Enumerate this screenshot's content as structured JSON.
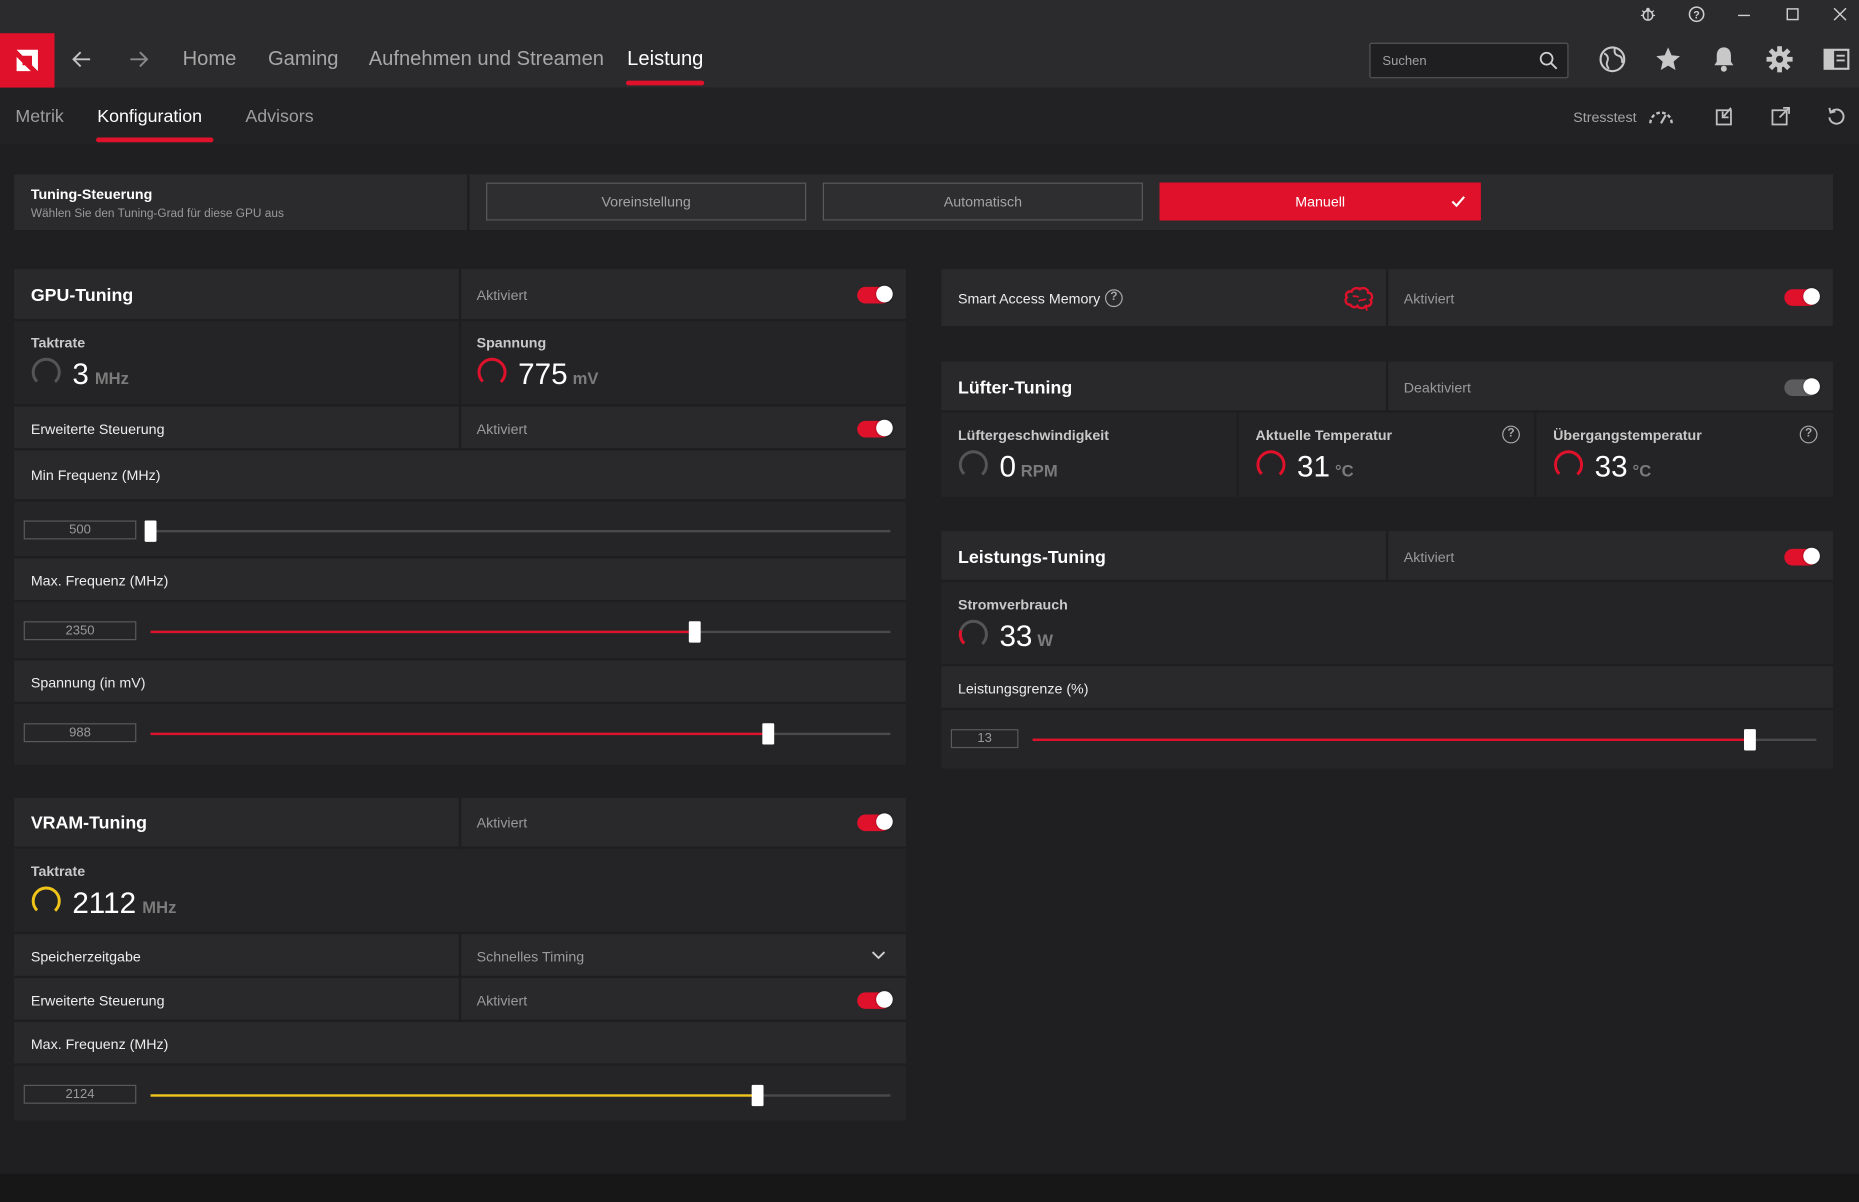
{
  "topnav": {
    "links": [
      "Home",
      "Gaming",
      "Aufnehmen und Streamen",
      "Leistung"
    ],
    "search_placeholder": "Suchen"
  },
  "subnav": {
    "tabs": [
      "Metrik",
      "Konfiguration",
      "Advisors"
    ],
    "stresstest_label": "Stresstest"
  },
  "tuning_control": {
    "title": "Tuning-Steuerung",
    "subtitle": "Wählen Sie den Tuning-Grad für diese GPU aus",
    "options": [
      "Voreinstellung",
      "Automatisch",
      "Manuell"
    ],
    "selected": "Manuell"
  },
  "gpu_tuning": {
    "title": "GPU-Tuning",
    "status": "Aktiviert",
    "clock_label": "Taktrate",
    "clock_value": "3",
    "clock_unit": "MHz",
    "voltage_label": "Spannung",
    "voltage_value": "775",
    "voltage_unit": "mV",
    "advanced_label": "Erweiterte Steuerung",
    "advanced_status": "Aktiviert",
    "min_freq_label": "Min Frequenz (MHz)",
    "min_freq_value": "500",
    "min_freq_level": 0,
    "max_freq_label": "Max. Frequenz (MHz)",
    "max_freq_value": "2350",
    "max_freq_level": 0.735,
    "voltage_slider_label": "Spannung (in mV)",
    "voltage_slider_value": "988",
    "voltage_slider_level": 0.835
  },
  "vram_tuning": {
    "title": "VRAM-Tuning",
    "status": "Aktiviert",
    "clock_label": "Taktrate",
    "clock_value": "2112",
    "clock_unit": "MHz",
    "memory_timing_label": "Speicherzeitgabe",
    "memory_timing_value": "Schnelles Timing",
    "advanced_label": "Erweiterte Steuerung",
    "advanced_status": "Aktiviert",
    "max_freq_label": "Max. Frequenz (MHz)",
    "max_freq_value": "2124",
    "max_freq_level": 0.82
  },
  "smart_access_memory": {
    "label": "Smart Access Memory",
    "status": "Aktiviert"
  },
  "fan_tuning": {
    "title": "Lüfter-Tuning",
    "status": "Deaktiviert",
    "fan_speed_label": "Lüftergeschwindigkeit",
    "fan_speed_value": "0",
    "fan_speed_unit": "RPM",
    "current_temp_label": "Aktuelle Temperatur",
    "current_temp_value": "31",
    "current_temp_unit": "°C",
    "junction_temp_label": "Übergangstemperatur",
    "junction_temp_value": "33",
    "junction_temp_unit": "°C"
  },
  "power_tuning": {
    "title": "Leistungs-Tuning",
    "status": "Aktiviert",
    "power_label": "Stromverbrauch",
    "power_value": "33",
    "power_unit": "W",
    "limit_label": "Leistungsgrenze (%)",
    "limit_value": "13",
    "limit_level": 0.915
  },
  "colors": {
    "accent": "#e0112b",
    "vram_accent": "#f0c419"
  }
}
